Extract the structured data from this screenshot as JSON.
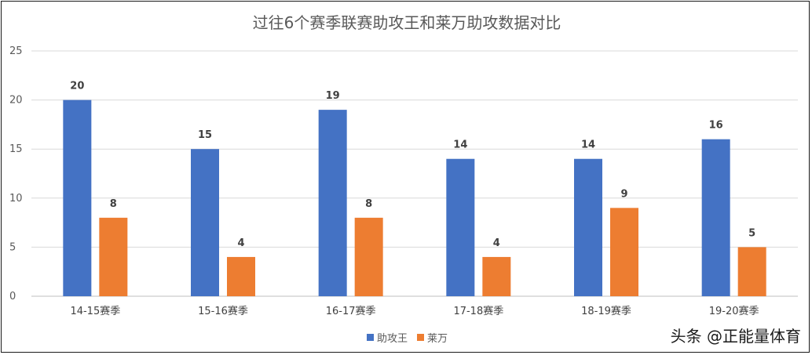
{
  "chart_data": {
    "type": "bar",
    "title": "过往6个赛季联赛助攻王和莱万助攻数据对比",
    "categories": [
      "14-15赛季",
      "15-16赛季",
      "16-17赛季",
      "17-18赛季",
      "18-19赛季",
      "19-20赛季"
    ],
    "series": [
      {
        "name": "助攻王",
        "values": [
          20,
          15,
          19,
          14,
          14,
          16
        ],
        "color": "#4472C4"
      },
      {
        "name": "莱万",
        "values": [
          8,
          4,
          8,
          4,
          9,
          5
        ],
        "color": "#ED7D31"
      }
    ],
    "ylim": [
      0,
      25
    ],
    "yticks": [
      0,
      5,
      10,
      15,
      20,
      25
    ],
    "grid": true,
    "legend": "bottom",
    "data_labels": true
  },
  "watermark": "头条 @正能量体育"
}
